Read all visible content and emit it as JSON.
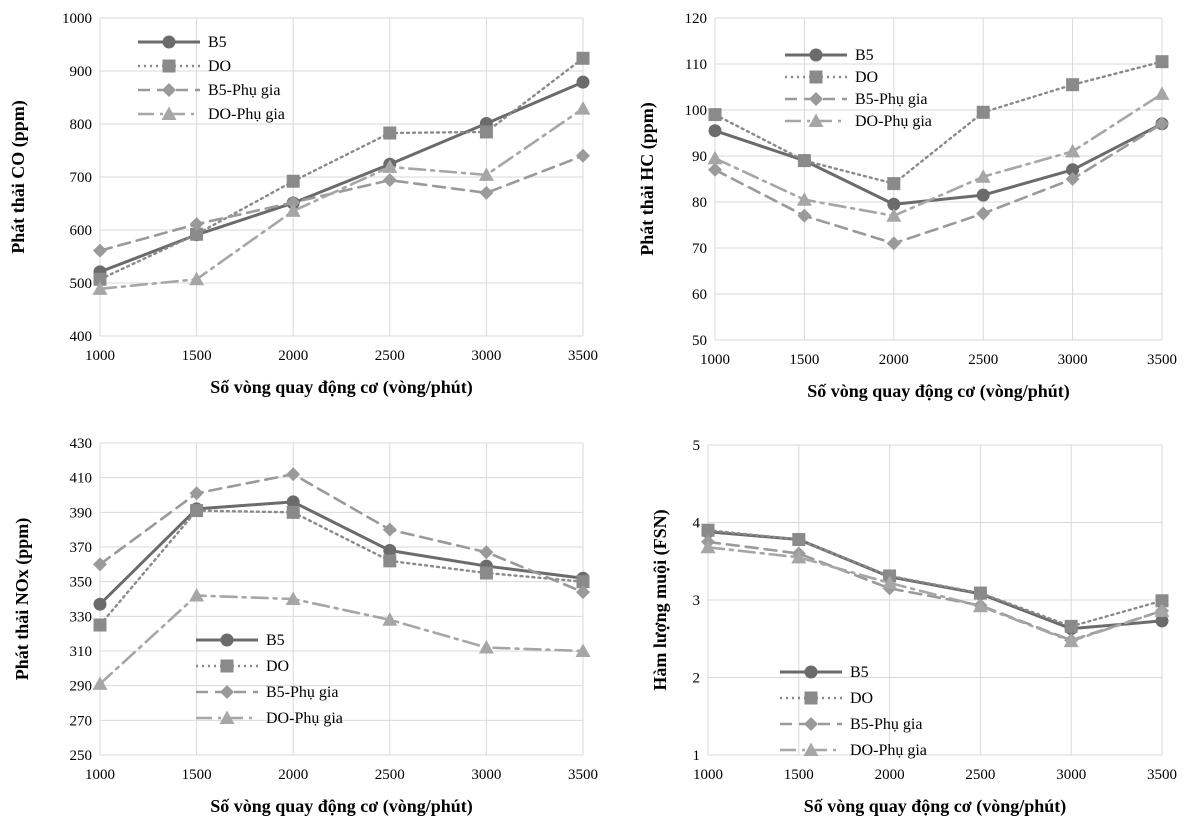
{
  "chart_data": [
    {
      "type": "line",
      "id": "co",
      "title": "",
      "xlabel": "Số vòng quay động cơ (vòng/phút)",
      "ylabel": "Phát thải CO (ppm)",
      "x": [
        1000,
        1500,
        2000,
        2500,
        3000,
        3500
      ],
      "ylim": [
        400,
        1000
      ],
      "yticks": [
        400,
        500,
        600,
        700,
        800,
        900,
        1000
      ],
      "grid": "horizontal",
      "legend_position": "top-left",
      "series": [
        {
          "name": "B5",
          "style": "solid-circle",
          "color": "#6b6b6b",
          "values": [
            521,
            591,
            651,
            724,
            801,
            879
          ]
        },
        {
          "name": "DO",
          "style": "dotted-square",
          "color": "#8a8a8a",
          "values": [
            507,
            592,
            692,
            783,
            785,
            924
          ]
        },
        {
          "name": "B5-Phụ gia",
          "style": "dash-diamond",
          "color": "#9a9a9a",
          "values": [
            561,
            611,
            652,
            694,
            670,
            740
          ]
        },
        {
          "name": "DO-Phụ gia",
          "style": "dashdot-triangle",
          "color": "#a6a6a6",
          "values": [
            489,
            507,
            636,
            719,
            704,
            829
          ]
        }
      ]
    },
    {
      "type": "line",
      "id": "hc",
      "title": "",
      "xlabel": "Số vòng quay động cơ (vòng/phút)",
      "ylabel": "Phát thải HC (ppm)",
      "x": [
        1000,
        1500,
        2000,
        2500,
        3000,
        3500
      ],
      "ylim": [
        50,
        120
      ],
      "yticks": [
        50,
        60,
        70,
        80,
        90,
        100,
        110,
        120
      ],
      "grid": "horizontal",
      "legend_position": "top-left",
      "series": [
        {
          "name": "B5",
          "style": "solid-circle",
          "color": "#6b6b6b",
          "values": [
            95.5,
            89,
            79.5,
            81.5,
            87,
            97
          ]
        },
        {
          "name": "DO",
          "style": "dotted-square",
          "color": "#8a8a8a",
          "values": [
            99,
            89,
            84,
            99.5,
            105.5,
            110.5
          ]
        },
        {
          "name": "B5-Phụ gia",
          "style": "dash-diamond",
          "color": "#9a9a9a",
          "values": [
            87,
            77,
            71,
            77.5,
            85,
            97
          ]
        },
        {
          "name": "DO-Phụ gia",
          "style": "dashdot-triangle",
          "color": "#a6a6a6",
          "values": [
            89.5,
            80.5,
            77,
            85.5,
            91,
            103.5
          ]
        }
      ]
    },
    {
      "type": "line",
      "id": "nox",
      "title": "",
      "xlabel": "Số vòng quay động cơ (vòng/phút)",
      "ylabel": "Phát thải NOx (ppm)",
      "x": [
        1000,
        1500,
        2000,
        2500,
        3000,
        3500
      ],
      "ylim": [
        250,
        430
      ],
      "yticks": [
        250,
        270,
        290,
        310,
        330,
        350,
        370,
        390,
        410,
        430
      ],
      "grid": "horizontal",
      "legend_position": "bottom-center",
      "series": [
        {
          "name": "B5",
          "style": "solid-circle",
          "color": "#6b6b6b",
          "values": [
            337,
            392,
            396,
            368,
            359,
            352
          ]
        },
        {
          "name": "DO",
          "style": "dotted-square",
          "color": "#8a8a8a",
          "values": [
            325,
            391,
            390,
            362,
            355,
            350
          ]
        },
        {
          "name": "B5-Phụ gia",
          "style": "dash-diamond",
          "color": "#9a9a9a",
          "values": [
            360,
            401,
            412,
            380,
            367,
            344
          ]
        },
        {
          "name": "DO-Phụ gia",
          "style": "dashdot-triangle",
          "color": "#a6a6a6",
          "values": [
            291,
            342,
            340,
            328,
            312,
            310
          ]
        }
      ]
    },
    {
      "type": "line",
      "id": "fsn",
      "title": "",
      "xlabel": "Số vòng quay động cơ (vòng/phút)",
      "ylabel": "Hàm lượng muội (FSN)",
      "x": [
        1000,
        1500,
        2000,
        2500,
        3000,
        3500
      ],
      "ylim": [
        1,
        5
      ],
      "yticks": [
        1,
        2,
        3,
        4,
        5
      ],
      "grid": "horizontal",
      "legend_position": "bottom-left",
      "series": [
        {
          "name": "B5",
          "style": "solid-circle",
          "color": "#6b6b6b",
          "values": [
            3.88,
            3.78,
            3.3,
            3.08,
            2.63,
            2.73
          ]
        },
        {
          "name": "DO",
          "style": "dotted-square",
          "color": "#8a8a8a",
          "values": [
            3.9,
            3.78,
            3.31,
            3.09,
            2.66,
            2.99
          ]
        },
        {
          "name": "B5-Phụ gia",
          "style": "dash-diamond",
          "color": "#9a9a9a",
          "values": [
            3.75,
            3.6,
            3.15,
            2.93,
            2.48,
            2.86
          ]
        },
        {
          "name": "DO-Phụ gia",
          "style": "dashdot-triangle",
          "color": "#a6a6a6",
          "values": [
            3.68,
            3.55,
            3.22,
            2.92,
            2.47,
            2.86
          ]
        }
      ]
    }
  ]
}
